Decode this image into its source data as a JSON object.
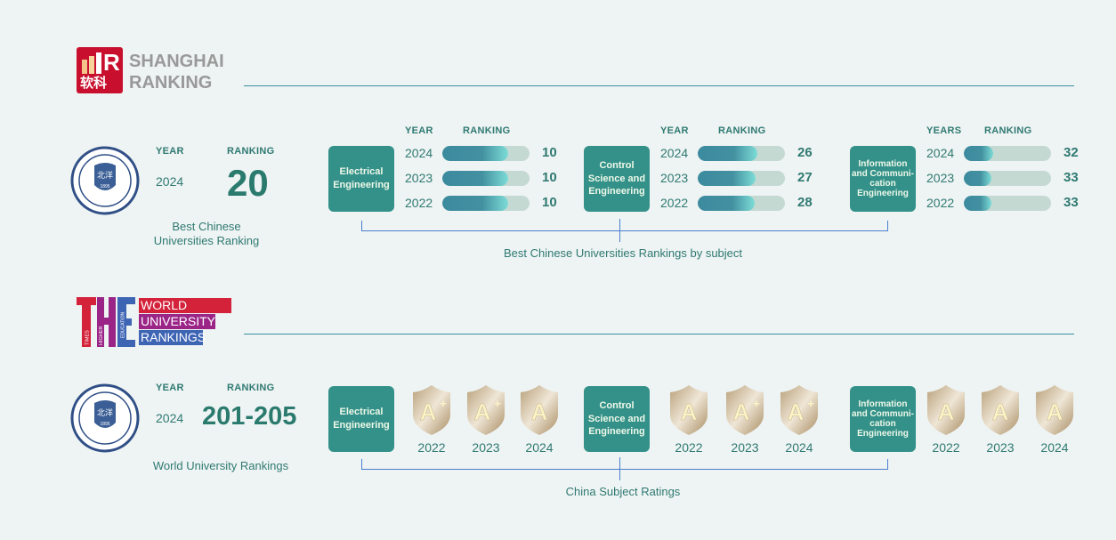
{
  "colors": {
    "background": "#eef3f3",
    "accent": "#34918a",
    "text": "#2f7a72",
    "bar_fill": "#4290a0",
    "bar_track": "#c5d9d3",
    "shanghai_red": "#c8102e"
  },
  "shanghai": {
    "logo": {
      "line1": "SHANGHAI",
      "line2": "RANKING",
      "chinese": "软科"
    },
    "university": {
      "year_label": "YEAR",
      "ranking_label": "RANKING",
      "year": "2024",
      "ranking": "20",
      "caption_line1": "Best Chinese",
      "caption_line2": "Universities Ranking"
    },
    "subjects": [
      {
        "name": "Electrical Engineering",
        "year_label": "YEAR",
        "ranking_label": "RANKING",
        "rows": [
          {
            "year": "2024",
            "rank": "10",
            "fill": 0.75
          },
          {
            "year": "2023",
            "rank": "10",
            "fill": 0.75
          },
          {
            "year": "2022",
            "rank": "10",
            "fill": 0.75
          }
        ]
      },
      {
        "name": "Control Science and Engineering",
        "year_label": "YEAR",
        "ranking_label": "RANKING",
        "rows": [
          {
            "year": "2024",
            "rank": "26",
            "fill": 0.68
          },
          {
            "year": "2023",
            "rank": "27",
            "fill": 0.66
          },
          {
            "year": "2022",
            "rank": "28",
            "fill": 0.65
          }
        ]
      },
      {
        "name": "Information and Communi-cation Engineering",
        "year_label": "YEARS",
        "ranking_label": "RANKING",
        "rows": [
          {
            "year": "2024",
            "rank": "32",
            "fill": 0.34
          },
          {
            "year": "2023",
            "rank": "33",
            "fill": 0.32
          },
          {
            "year": "2022",
            "rank": "33",
            "fill": 0.32
          }
        ]
      }
    ],
    "subjects_caption": "Best Chinese Universities Rankings by subject"
  },
  "the": {
    "logo": {
      "letters": "THE",
      "line1": "WORLD",
      "line2": "UNIVERSITY",
      "line3": "RANKINGS",
      "small1": "TIMES",
      "small2": "HIGHER",
      "small3": "EDUCATION"
    },
    "university": {
      "year_label": "YEAR",
      "ranking_label": "RANKING",
      "year": "2024",
      "ranking": "201-205",
      "caption": "World University Rankings"
    },
    "subjects": [
      {
        "name": "Electrical Engineering",
        "grades": [
          {
            "grade": "A",
            "plus": "+",
            "year": "2022"
          },
          {
            "grade": "A",
            "plus": "+",
            "year": "2023"
          },
          {
            "grade": "A",
            "plus": "",
            "year": "2024"
          }
        ]
      },
      {
        "name": "Control Science and Engineering",
        "grades": [
          {
            "grade": "A",
            "plus": "",
            "year": "2022"
          },
          {
            "grade": "A",
            "plus": "+",
            "year": "2023"
          },
          {
            "grade": "A",
            "plus": "+",
            "year": "2024"
          }
        ]
      },
      {
        "name": "Information and Communi-cation Engineering",
        "grades": [
          {
            "grade": "A",
            "plus": "",
            "year": "2022"
          },
          {
            "grade": "A",
            "plus": "",
            "year": "2023"
          },
          {
            "grade": "A",
            "plus": "",
            "year": "2024"
          }
        ]
      }
    ],
    "subjects_caption": "China Subject Ratings"
  }
}
